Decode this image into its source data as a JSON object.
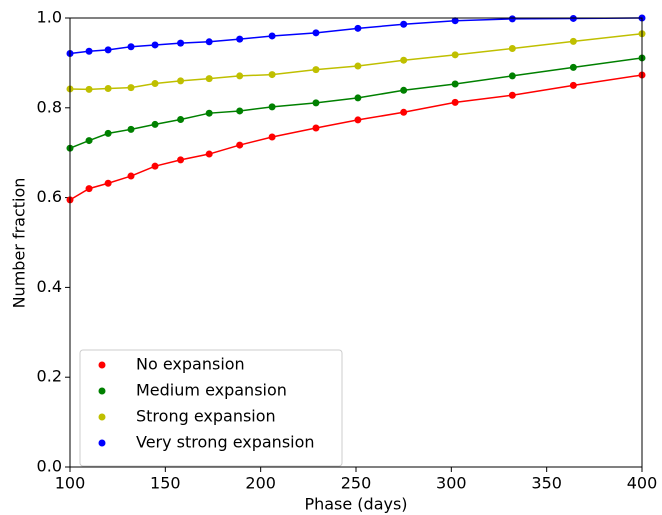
{
  "chart_data": {
    "type": "line",
    "x_label": "Phase (days)",
    "y_label": "Number fraction",
    "x": [
      100,
      110,
      120,
      132,
      144.6,
      158,
      173,
      189,
      206,
      229,
      251,
      275,
      302,
      332,
      364,
      400
    ],
    "series": [
      {
        "name": "No expansion",
        "color": "#ff0000",
        "values": [
          0.595,
          0.62,
          0.632,
          0.648,
          0.67,
          0.684,
          0.697,
          0.717,
          0.735,
          0.755,
          0.773,
          0.79,
          0.812,
          0.828,
          0.85,
          0.873
        ]
      },
      {
        "name": "Medium expansion",
        "color": "#008000",
        "values": [
          0.71,
          0.727,
          0.743,
          0.752,
          0.763,
          0.774,
          0.788,
          0.793,
          0.802,
          0.811,
          0.822,
          0.839,
          0.853,
          0.871,
          0.89,
          0.911
        ]
      },
      {
        "name": "Strong expansion",
        "color": "#bfbf00",
        "values": [
          0.842,
          0.841,
          0.843,
          0.845,
          0.854,
          0.86,
          0.865,
          0.871,
          0.874,
          0.885,
          0.893,
          0.906,
          0.918,
          0.932,
          0.948,
          0.965
        ]
      },
      {
        "name": "Very strong expansion",
        "color": "#0000ff",
        "values": [
          0.921,
          0.926,
          0.929,
          0.936,
          0.94,
          0.944,
          0.947,
          0.953,
          0.96,
          0.967,
          0.977,
          0.986,
          0.994,
          0.998,
          0.999,
          1.0
        ]
      }
    ],
    "xlim": [
      100,
      400
    ],
    "xticks": [
      100,
      150,
      200,
      250,
      300,
      350,
      400
    ],
    "ylim": [
      0,
      1
    ],
    "yticks": [
      {
        "value": 0,
        "label": "0.0"
      },
      0.2,
      0.4,
      0.6,
      0.8,
      {
        "value": 1,
        "label": "1.0"
      }
    ],
    "grid": false,
    "legend": "lower left"
  }
}
